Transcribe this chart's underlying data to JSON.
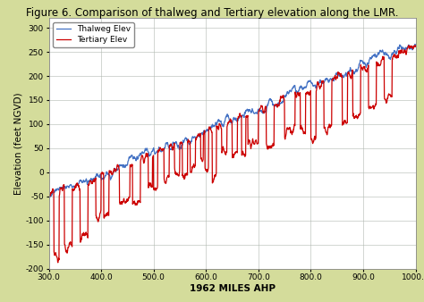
{
  "title": "Figure 6. Comparison of thalweg and Tertiary elevation along the LMR.",
  "xlabel": "1962 MILES AHP",
  "ylabel": "Elevation (feet NGVD)",
  "xlim": [
    300.0,
    1000.0
  ],
  "ylim": [
    -200,
    320
  ],
  "yticks": [
    -200,
    -150,
    -100,
    -50,
    0,
    50,
    100,
    150,
    200,
    250,
    300
  ],
  "xticks": [
    300.0,
    400.0,
    500.0,
    600.0,
    700.0,
    800.0,
    900.0,
    1000.0
  ],
  "background_color": "#d4dc9b",
  "plot_bg_color": "#ffffff",
  "thalweg_color": "#4472c4",
  "tertiary_color": "#cc0000",
  "legend_labels": [
    "Thalweg Elev",
    "Tertiary Elev"
  ],
  "title_fontsize": 8.5,
  "axis_fontsize": 7.5,
  "tick_fontsize": 6.5
}
